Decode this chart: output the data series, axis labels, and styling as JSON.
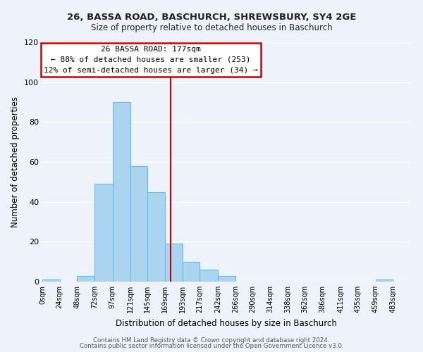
{
  "title": "26, BASSA ROAD, BASCHURCH, SHREWSBURY, SY4 2GE",
  "subtitle": "Size of property relative to detached houses in Baschurch",
  "xlabel": "Distribution of detached houses by size in Baschurch",
  "ylabel": "Number of detached properties",
  "footer_line1": "Contains HM Land Registry data © Crown copyright and database right 2024.",
  "footer_line2": "Contains public sector information licensed under the Open Government Licence v3.0.",
  "bin_labels": [
    "0sqm",
    "24sqm",
    "48sqm",
    "72sqm",
    "97sqm",
    "121sqm",
    "145sqm",
    "169sqm",
    "193sqm",
    "217sqm",
    "242sqm",
    "266sqm",
    "290sqm",
    "314sqm",
    "338sqm",
    "362sqm",
    "386sqm",
    "411sqm",
    "435sqm",
    "459sqm",
    "483sqm"
  ],
  "bar_values": [
    1,
    0,
    3,
    49,
    90,
    58,
    45,
    19,
    10,
    6,
    3,
    0,
    0,
    0,
    0,
    0,
    0,
    0,
    0,
    1,
    0
  ],
  "bar_color": "#aad4f0",
  "bar_edge_color": "#6bbde8",
  "property_line_x": 177,
  "annotation_title": "26 BASSA ROAD: 177sqm",
  "annotation_line1": "← 88% of detached houses are smaller (253)",
  "annotation_line2": "12% of semi-detached houses are larger (34) →",
  "annotation_box_color": "#ffffff",
  "annotation_box_edge_color": "#cc0000",
  "vline_color": "#cc0000",
  "ylim": [
    0,
    120
  ],
  "background_color": "#eef2fb",
  "bin_edges": [
    0,
    24,
    48,
    72,
    97,
    121,
    145,
    169,
    193,
    217,
    242,
    266,
    290,
    314,
    338,
    362,
    386,
    411,
    435,
    459,
    483,
    507
  ],
  "yticks": [
    0,
    20,
    40,
    60,
    80,
    100,
    120
  ]
}
